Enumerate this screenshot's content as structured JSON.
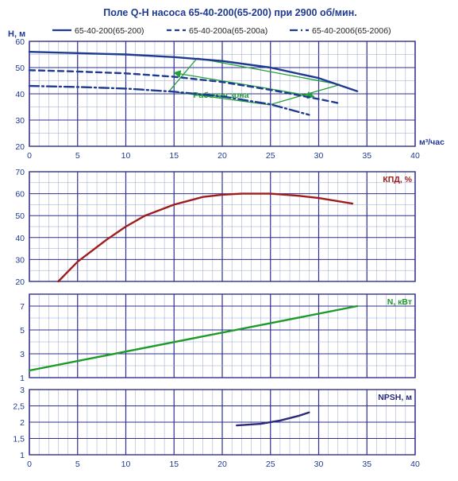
{
  "title": "Поле Q-H насоса 65-40-200(65-200) при 2900 об/мин.",
  "legend": [
    {
      "label": "65-40-200(65-200)",
      "style": "solid"
    },
    {
      "label": "65-40-200а(65-200а)",
      "style": "dash"
    },
    {
      "label": "65-40-200б(65-200б)",
      "style": "dashdot"
    }
  ],
  "colors": {
    "qh": "#1f3a93",
    "eff": "#a01c1c",
    "power": "#1e9a2a",
    "npsh": "#2b2a7a",
    "zone": "#22a03a",
    "grid": "#2f2f8f",
    "axis_text": "#1f3a93",
    "title": "#1f3a93"
  },
  "chart_data": [
    {
      "type": "line",
      "title": "Поле Q-H насоса 65-40-200(65-200) при 2900 об/мин.",
      "ylabel": "H, м",
      "xlabel": "м³/час",
      "xlim": [
        0,
        40
      ],
      "ylim": [
        20,
        60
      ],
      "x_ticks": [
        "0",
        "5",
        "10",
        "15",
        "20",
        "25",
        "30",
        "35",
        "40"
      ],
      "y_ticks": [
        "20",
        "30",
        "40",
        "50",
        "60"
      ],
      "grid": true,
      "legend_position": "top",
      "annotation": "Рабочая зона",
      "series": [
        {
          "name": "65-40-200(65-200)",
          "x": [
            0,
            5,
            10,
            15,
            20,
            25,
            30,
            34
          ],
          "y": [
            56,
            55.5,
            55,
            54,
            52.5,
            50,
            46,
            41
          ]
        },
        {
          "name": "65-40-200а(65-200а)",
          "x": [
            0,
            5,
            10,
            15,
            20,
            25,
            30,
            32
          ],
          "y": [
            49,
            48.5,
            47.8,
            46.5,
            44.5,
            41.5,
            38,
            36.5
          ]
        },
        {
          "name": "65-40-200б(65-200б)",
          "x": [
            0,
            5,
            10,
            15,
            20,
            25,
            29
          ],
          "y": [
            43,
            42.6,
            42,
            40.8,
            39,
            36,
            32
          ]
        }
      ],
      "working_zone": {
        "x": [
          17.4,
          14.5,
          24.9,
          32.2,
          17.4
        ],
        "y": [
          53.6,
          41,
          35.8,
          43.5,
          53.6
        ]
      }
    },
    {
      "type": "line",
      "ylabel": "КПД, %",
      "xlim": [
        0,
        40
      ],
      "ylim": [
        20,
        70
      ],
      "y_ticks": [
        "20",
        "30",
        "40",
        "50",
        "60",
        "70"
      ],
      "grid": true,
      "series": [
        {
          "x": [
            3,
            5,
            8,
            10,
            12,
            15,
            18,
            20,
            22,
            25,
            28,
            30,
            33.5
          ],
          "y": [
            20,
            29,
            39,
            45,
            50,
            55,
            58.5,
            59.5,
            60,
            60,
            59,
            58,
            55.5
          ]
        }
      ]
    },
    {
      "type": "line",
      "ylabel": "N, кВт",
      "xlim": [
        0,
        40
      ],
      "ylim": [
        1,
        8
      ],
      "y_ticks": [
        "1",
        "3",
        "5",
        "7"
      ],
      "grid": true,
      "series": [
        {
          "x": [
            0,
            34
          ],
          "y": [
            1.6,
            7
          ]
        }
      ]
    },
    {
      "type": "line",
      "ylabel": "NPSH, м",
      "xlim": [
        0,
        40
      ],
      "ylim": [
        1,
        3
      ],
      "x_ticks": [
        "0",
        "5",
        "10",
        "15",
        "20",
        "25",
        "30",
        "35",
        "40"
      ],
      "y_ticks": [
        "1",
        "1,5",
        "2",
        "2,5",
        "3"
      ],
      "grid": true,
      "series": [
        {
          "x": [
            21.5,
            24,
            26,
            28,
            29
          ],
          "y": [
            1.9,
            1.95,
            2.05,
            2.2,
            2.3
          ]
        }
      ]
    }
  ]
}
